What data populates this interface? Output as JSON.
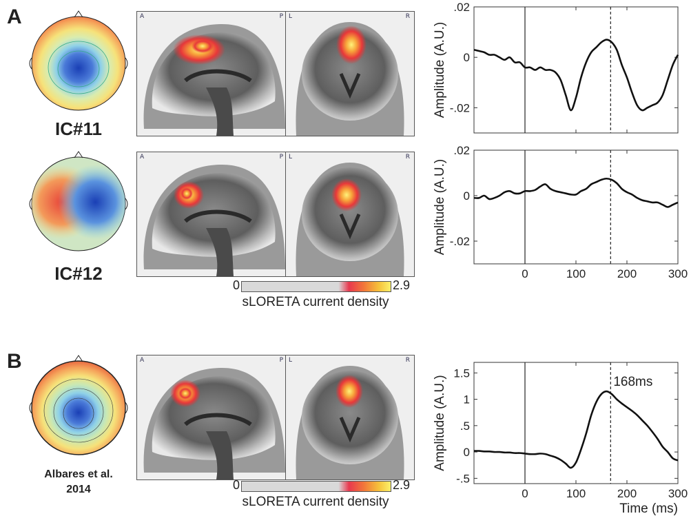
{
  "panels": {
    "A": {
      "letter": "A"
    },
    "B": {
      "letter": "B"
    }
  },
  "components": [
    {
      "label": "IC#11"
    },
    {
      "label": "IC#12"
    },
    {
      "label_line1": "Albares et al.",
      "label_line2": "2014"
    }
  ],
  "orientation": {
    "sagittal_left": "A",
    "sagittal_right": "P",
    "coronal_left": "L",
    "coronal_right": "R"
  },
  "colorbar": {
    "min": "0",
    "max": "2.9",
    "title": "sLORETA current density"
  },
  "chart_data": [
    {
      "type": "line",
      "panel": "A",
      "name": "IC#11",
      "xlabel": "",
      "ylabel": "Amplitude (A.U.)",
      "xlim": [
        -100,
        300
      ],
      "ylim": [
        -0.03,
        0.02
      ],
      "yticks": [
        ".02",
        "0",
        "-.02"
      ],
      "ytick_values": [
        0.02,
        0,
        -0.02
      ],
      "xticks": [],
      "vline_solid": 0,
      "vline_dashed": 168,
      "x": [
        -100,
        -90,
        -80,
        -70,
        -60,
        -50,
        -40,
        -30,
        -20,
        -10,
        0,
        10,
        20,
        30,
        40,
        50,
        60,
        70,
        80,
        90,
        100,
        110,
        120,
        130,
        140,
        150,
        160,
        170,
        180,
        190,
        200,
        210,
        220,
        230,
        240,
        250,
        260,
        270,
        280,
        290,
        300
      ],
      "y": [
        0.003,
        0.0025,
        0.002,
        0.001,
        0.001,
        0,
        -0.001,
        0,
        -0.002,
        -0.002,
        -0.004,
        -0.004,
        -0.005,
        -0.004,
        -0.005,
        -0.005,
        -0.006,
        -0.009,
        -0.015,
        -0.021,
        -0.016,
        -0.008,
        -0.002,
        0.002,
        0.004,
        0.006,
        0.007,
        0.006,
        0.003,
        -0.003,
        -0.008,
        -0.014,
        -0.019,
        -0.021,
        -0.02,
        -0.019,
        -0.018,
        -0.015,
        -0.009,
        -0.003,
        0.001
      ]
    },
    {
      "type": "line",
      "panel": "A",
      "name": "IC#12",
      "xlabel": "Time (ms)",
      "ylabel": "Amplitude (A.U.)",
      "xlim": [
        -100,
        300
      ],
      "ylim": [
        -0.03,
        0.02
      ],
      "yticks": [
        ".02",
        "0",
        "-.02"
      ],
      "ytick_values": [
        0.02,
        0,
        -0.02
      ],
      "xticks": [
        "0",
        "100",
        "200",
        "300"
      ],
      "xtick_values": [
        0,
        100,
        200,
        300
      ],
      "vline_solid": 0,
      "vline_dashed": 168,
      "x": [
        -100,
        -90,
        -80,
        -70,
        -60,
        -50,
        -40,
        -30,
        -20,
        -10,
        0,
        10,
        20,
        30,
        40,
        50,
        60,
        70,
        80,
        90,
        100,
        110,
        120,
        130,
        140,
        150,
        160,
        170,
        180,
        190,
        200,
        210,
        220,
        230,
        240,
        250,
        260,
        270,
        280,
        290,
        300
      ],
      "y": [
        -0.001,
        -0.001,
        0,
        -0.0015,
        -0.001,
        0,
        0.0015,
        0.002,
        0.001,
        0.001,
        0.002,
        0.002,
        0.0025,
        0.004,
        0.005,
        0.003,
        0.002,
        0.0015,
        0.001,
        0.0005,
        0.0005,
        0.002,
        0.003,
        0.005,
        0.006,
        0.007,
        0.0075,
        0.007,
        0.0055,
        0.003,
        0.0015,
        0.0005,
        -0.001,
        -0.002,
        -0.0025,
        -0.003,
        -0.003,
        -0.004,
        -0.005,
        -0.004,
        -0.003
      ]
    },
    {
      "type": "line",
      "panel": "B",
      "name": "Albares et al. 2014",
      "xlabel": "Time (ms)",
      "ylabel": "Amplitude (A.U.)",
      "xlim": [
        -100,
        300
      ],
      "ylim": [
        -0.6,
        1.7
      ],
      "yticks": [
        "1.5",
        "1",
        ".5",
        "0",
        "-.5"
      ],
      "ytick_values": [
        1.5,
        1,
        0.5,
        0,
        -0.5
      ],
      "xticks": [
        "0",
        "100",
        "200",
        "300"
      ],
      "xtick_values": [
        0,
        100,
        200,
        300
      ],
      "vline_solid": 0,
      "vline_dashed": 168,
      "annotation": "168ms",
      "x": [
        -100,
        -90,
        -80,
        -70,
        -60,
        -50,
        -40,
        -30,
        -20,
        -10,
        0,
        10,
        20,
        30,
        40,
        50,
        60,
        70,
        80,
        90,
        100,
        110,
        120,
        130,
        140,
        150,
        160,
        170,
        180,
        190,
        200,
        210,
        220,
        230,
        240,
        250,
        260,
        270,
        280,
        290,
        300
      ],
      "y": [
        0.02,
        0.02,
        0.01,
        0.01,
        0,
        0,
        -0.01,
        -0.01,
        -0.02,
        -0.02,
        -0.03,
        -0.04,
        -0.04,
        -0.03,
        -0.04,
        -0.07,
        -0.1,
        -0.15,
        -0.22,
        -0.3,
        -0.2,
        0.05,
        0.35,
        0.7,
        0.95,
        1.1,
        1.15,
        1.1,
        1.0,
        0.92,
        0.85,
        0.78,
        0.7,
        0.6,
        0.5,
        0.38,
        0.25,
        0.1,
        0,
        -0.12,
        -0.16
      ]
    }
  ]
}
